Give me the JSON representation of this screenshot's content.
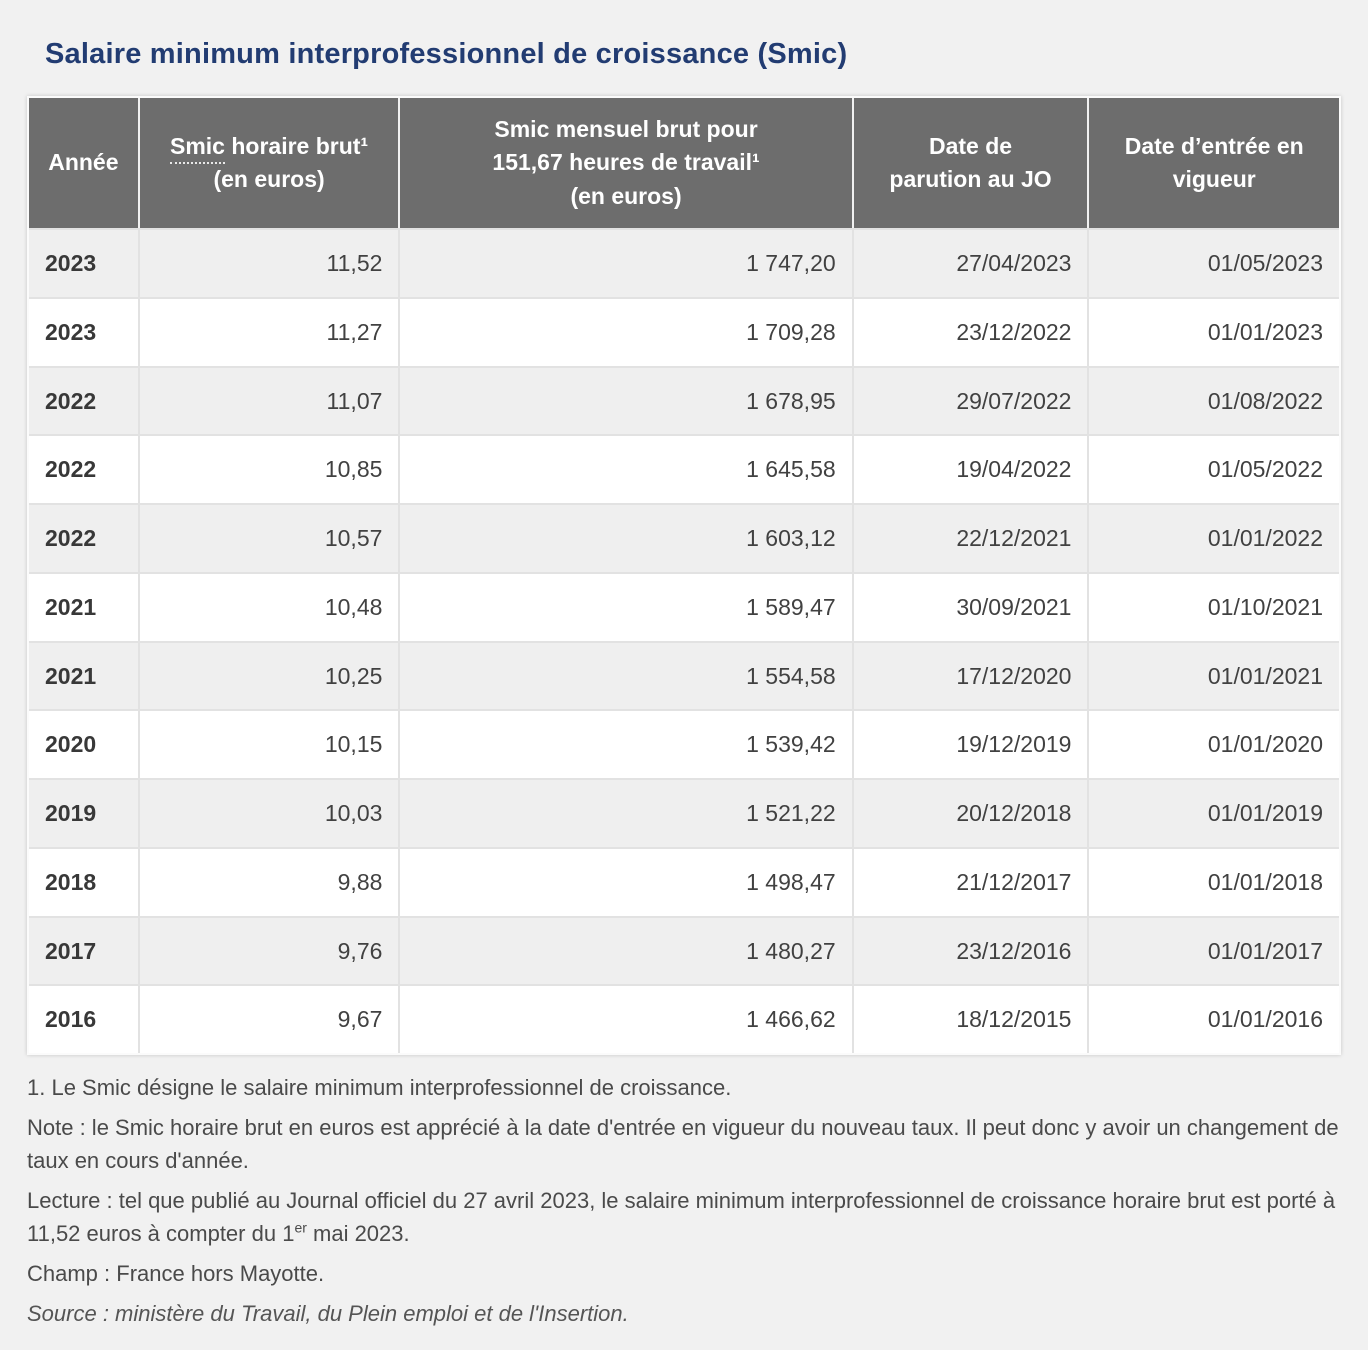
{
  "title": "Salaire minimum interprofessionnel de croissance (Smic)",
  "colors": {
    "title_blue": "#223c72",
    "header_gray": "#6d6d6d",
    "row_stripe": "#efefef",
    "page_bg": "#f1f1f1"
  },
  "table": {
    "headers": {
      "annee": "Année",
      "horaire": {
        "abbr": "Smic",
        "rest": " horaire brut¹",
        "unit": "(en euros)"
      },
      "mensuel": {
        "line1": "Smic mensuel brut pour",
        "line2": "151,67 heures de travail¹",
        "unit": "(en euros)"
      },
      "parution": {
        "line1": "Date de",
        "line2": "parution au JO"
      },
      "vigueur": {
        "line1": "Date d’entrée en",
        "line2": "vigueur"
      }
    },
    "rows": [
      {
        "year": "2023",
        "hourly": "11,52",
        "monthly": "1 747,20",
        "jo": "27/04/2023",
        "effective": "01/05/2023"
      },
      {
        "year": "2023",
        "hourly": "11,27",
        "monthly": "1 709,28",
        "jo": "23/12/2022",
        "effective": "01/01/2023"
      },
      {
        "year": "2022",
        "hourly": "11,07",
        "monthly": "1 678,95",
        "jo": "29/07/2022",
        "effective": "01/08/2022"
      },
      {
        "year": "2022",
        "hourly": "10,85",
        "monthly": "1 645,58",
        "jo": "19/04/2022",
        "effective": "01/05/2022"
      },
      {
        "year": "2022",
        "hourly": "10,57",
        "monthly": "1 603,12",
        "jo": "22/12/2021",
        "effective": "01/01/2022"
      },
      {
        "year": "2021",
        "hourly": "10,48",
        "monthly": "1 589,47",
        "jo": "30/09/2021",
        "effective": "01/10/2021"
      },
      {
        "year": "2021",
        "hourly": "10,25",
        "monthly": "1 554,58",
        "jo": "17/12/2020",
        "effective": "01/01/2021"
      },
      {
        "year": "2020",
        "hourly": "10,15",
        "monthly": "1 539,42",
        "jo": "19/12/2019",
        "effective": "01/01/2020"
      },
      {
        "year": "2019",
        "hourly": "10,03",
        "monthly": "1 521,22",
        "jo": "20/12/2018",
        "effective": "01/01/2019"
      },
      {
        "year": "2018",
        "hourly": "9,88",
        "monthly": "1 498,47",
        "jo": "21/12/2017",
        "effective": "01/01/2018"
      },
      {
        "year": "2017",
        "hourly": "9,76",
        "monthly": "1 480,27",
        "jo": "23/12/2016",
        "effective": "01/01/2017"
      },
      {
        "year": "2016",
        "hourly": "9,67",
        "monthly": "1 466,62",
        "jo": "18/12/2015",
        "effective": "01/01/2016"
      }
    ]
  },
  "notes": {
    "footnote1": "1. Le Smic désigne le salaire minimum interprofessionnel de croissance.",
    "note": "Note : le Smic horaire brut en euros est apprécié à la date d'entrée en vigueur du nouveau taux. Il peut donc y avoir un changement de taux en cours d'année.",
    "lecture_before": "Lecture : tel que publié au Journal officiel du 27 avril 2023, le salaire minimum interprofessionnel de croissance horaire brut est porté à 11,52 euros à compter du 1",
    "lecture_sup": "er",
    "lecture_after": " mai 2023.",
    "champ": "Champ : France hors Mayotte.",
    "source": "Source : ministère du Travail, du Plein emploi et de l'Insertion."
  }
}
